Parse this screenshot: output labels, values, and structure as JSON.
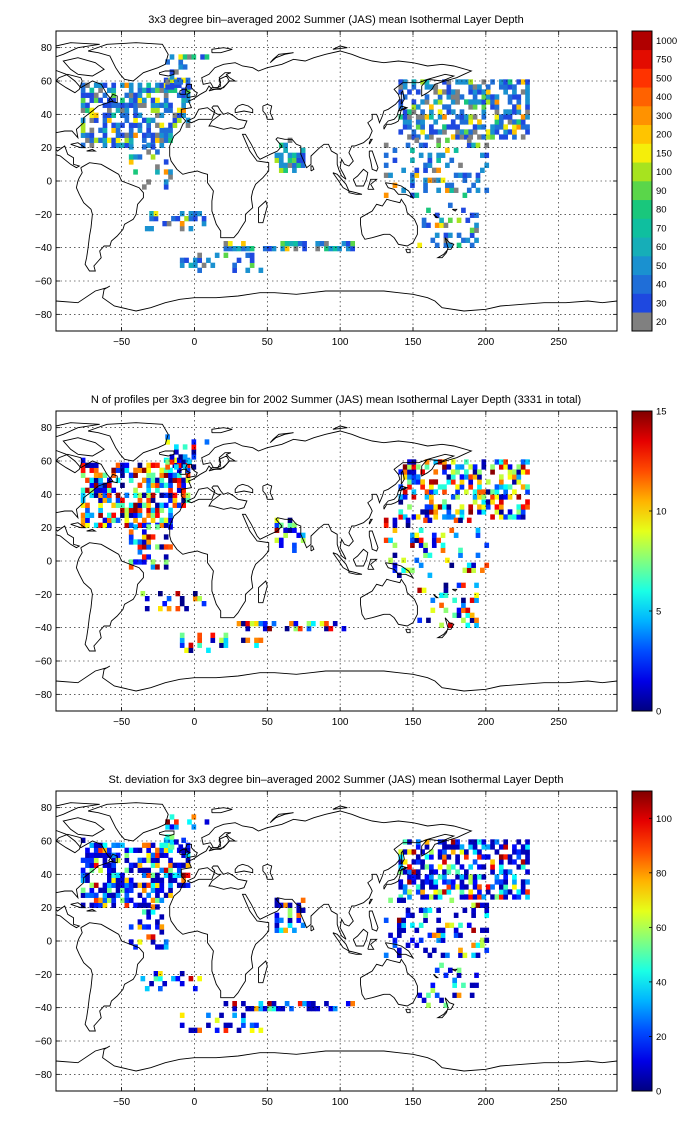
{
  "panels": [
    {
      "title": "3x3 degree bin–averaged 2002 Summer (JAS) mean Isothermal Layer Depth",
      "colorbar": {
        "type": "discrete",
        "labels": [
          "20",
          "30",
          "40",
          "50",
          "60",
          "70",
          "80",
          "90",
          "100",
          "150",
          "200",
          "300",
          "400",
          "500",
          "750",
          "1000"
        ],
        "colors": [
          "#808080",
          "#1e48e0",
          "#1f6ed8",
          "#1a91d0",
          "#16aeb8",
          "#0fbf9f",
          "#19c77c",
          "#5ad64a",
          "#a7e31f",
          "#f5ee0a",
          "#ffc400",
          "#ff9200",
          "#ff6200",
          "#ff3300",
          "#e30c00",
          "#b00000"
        ]
      },
      "bins": {
        "lon_start": -60,
        "lon_end": 240,
        "lat_start": -60,
        "lat_end": 60
      }
    },
    {
      "title": "N of profiles per 3x3 degree bin for 2002 Summer (JAS) mean Isothermal Layer Depth  (3331 in total)",
      "colorbar": {
        "type": "continuous",
        "ticks": [
          0,
          5,
          10,
          15
        ],
        "tick_labels": [
          "0",
          "5",
          "10",
          "15"
        ],
        "range": [
          0,
          15
        ]
      },
      "bins": {
        "lon_start": -60,
        "lon_end": 240,
        "lat_start": -60,
        "lat_end": 60
      }
    },
    {
      "title": "St. deviation for 3x3 degree bin–averaged 2002 Summer (JAS) mean Isothermal Layer Depth",
      "colorbar": {
        "type": "continuous",
        "ticks": [
          0,
          20,
          40,
          60,
          80,
          100
        ],
        "tick_labels": [
          "0",
          "20",
          "40",
          "60",
          "80",
          "100"
        ],
        "range": [
          0,
          110
        ]
      },
      "bins": {
        "lon_start": -60,
        "lon_end": 240,
        "lat_start": -60,
        "lat_end": 60
      }
    }
  ],
  "map": {
    "x_ticks": [
      -50,
      0,
      50,
      100,
      150,
      200,
      250
    ],
    "x_tick_labels": [
      "−50",
      "0",
      "50",
      "100",
      "150",
      "200",
      "250"
    ],
    "y_ticks": [
      -80,
      -60,
      -40,
      -20,
      0,
      20,
      40,
      60,
      80
    ],
    "y_tick_labels": [
      "−80",
      "−60",
      "−40",
      "−20",
      "0",
      "20",
      "40",
      "60",
      "80"
    ],
    "lon_range": [
      -95,
      290
    ],
    "lat_range": [
      -90,
      90
    ],
    "grid": true
  }
}
